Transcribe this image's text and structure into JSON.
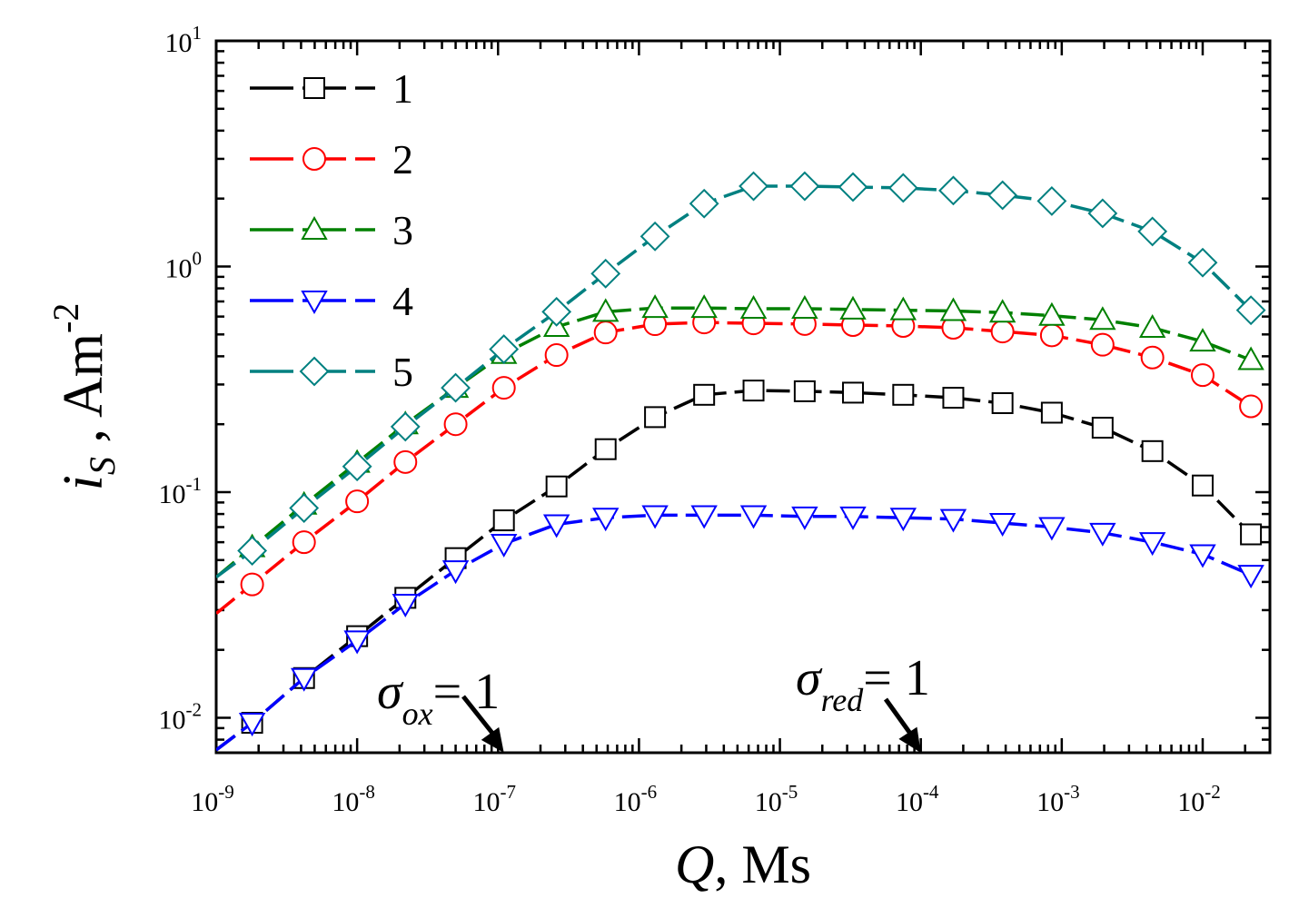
{
  "chart_data": {
    "type": "line",
    "xscale": "log",
    "yscale": "log",
    "xlim": [
      1e-09,
      0.03
    ],
    "ylim": [
      0.007,
      10
    ],
    "xlabel": {
      "var": "Q",
      "unit": ", Ms"
    },
    "ylabel": {
      "var": "i",
      "sub": "S",
      "unit": " , Am",
      "sup": "-2"
    },
    "x_ticks": [
      {
        "value": 1e-09,
        "base": "10",
        "exp": "-9"
      },
      {
        "value": 1e-08,
        "base": "10",
        "exp": "-8"
      },
      {
        "value": 1e-07,
        "base": "10",
        "exp": "-7"
      },
      {
        "value": 1e-06,
        "base": "10",
        "exp": "-6"
      },
      {
        "value": 1e-05,
        "base": "10",
        "exp": "-5"
      },
      {
        "value": 0.0001,
        "base": "10",
        "exp": "-4"
      },
      {
        "value": 0.001,
        "base": "10",
        "exp": "-3"
      },
      {
        "value": 0.01,
        "base": "10",
        "exp": "-2"
      }
    ],
    "y_ticks": [
      {
        "value": 0.01,
        "base": "10",
        "exp": "-2"
      },
      {
        "value": 0.1,
        "base": "10",
        "exp": "-1"
      },
      {
        "value": 1,
        "base": "10",
        "exp": "0"
      },
      {
        "value": 10,
        "base": "10",
        "exp": "1"
      }
    ],
    "x": [
      1.8e-09,
      4.2e-09,
      1e-08,
      2.2e-08,
      5e-08,
      1.1e-07,
      2.6e-07,
      5.8e-07,
      1.3e-06,
      2.9e-06,
      6.5e-06,
      1.5e-05,
      3.3e-05,
      7.5e-05,
      0.00017,
      0.00038,
      0.00085,
      0.00195,
      0.0044,
      0.01,
      0.022
    ],
    "series": [
      {
        "name": "1",
        "marker": "square",
        "color": "#000000",
        "line_start": [
          1e-09,
          0.0072
        ],
        "values": [
          0.0095,
          0.015,
          0.023,
          0.034,
          0.051,
          0.075,
          0.106,
          0.155,
          0.215,
          0.27,
          0.282,
          0.28,
          0.276,
          0.27,
          0.262,
          0.248,
          0.225,
          0.193,
          0.152,
          0.107,
          0.065
        ]
      },
      {
        "name": "2",
        "marker": "circle",
        "color": "#ff0000",
        "line_start": [
          1e-09,
          0.029
        ],
        "values": [
          0.039,
          0.06,
          0.091,
          0.136,
          0.2,
          0.29,
          0.405,
          0.51,
          0.555,
          0.565,
          0.56,
          0.556,
          0.55,
          0.545,
          0.535,
          0.515,
          0.495,
          0.45,
          0.395,
          0.33,
          0.24
        ]
      },
      {
        "name": "3",
        "marker": "triangle-up",
        "color": "#008000",
        "line_start": [
          1e-09,
          0.042
        ],
        "values": [
          0.057,
          0.088,
          0.135,
          0.2,
          0.29,
          0.41,
          0.54,
          0.63,
          0.655,
          0.655,
          0.65,
          0.65,
          0.645,
          0.64,
          0.635,
          0.625,
          0.605,
          0.58,
          0.535,
          0.465,
          0.385
        ]
      },
      {
        "name": "4",
        "marker": "triangle-down",
        "color": "#0000ff",
        "line_start": [
          1e-09,
          0.0072
        ],
        "values": [
          0.0095,
          0.015,
          0.022,
          0.032,
          0.045,
          0.059,
          0.072,
          0.077,
          0.079,
          0.079,
          0.079,
          0.078,
          0.078,
          0.077,
          0.076,
          0.073,
          0.07,
          0.066,
          0.06,
          0.053,
          0.043
        ]
      },
      {
        "name": "5",
        "marker": "diamond",
        "color": "#008080",
        "line_start": [
          1e-09,
          0.042
        ],
        "values": [
          0.055,
          0.085,
          0.13,
          0.195,
          0.29,
          0.43,
          0.63,
          0.93,
          1.36,
          1.9,
          2.27,
          2.27,
          2.25,
          2.23,
          2.17,
          2.07,
          1.95,
          1.72,
          1.43,
          1.04,
          0.64
        ]
      }
    ],
    "legend": {
      "position": "top-left"
    },
    "annotations": [
      {
        "symbol": "σ",
        "sub": "ox",
        "text": "= 1",
        "arrow_to_x": 1.1e-07
      },
      {
        "symbol": "σ",
        "sub": "red",
        "text": "= 1",
        "arrow_to_x": 0.0001
      }
    ]
  }
}
